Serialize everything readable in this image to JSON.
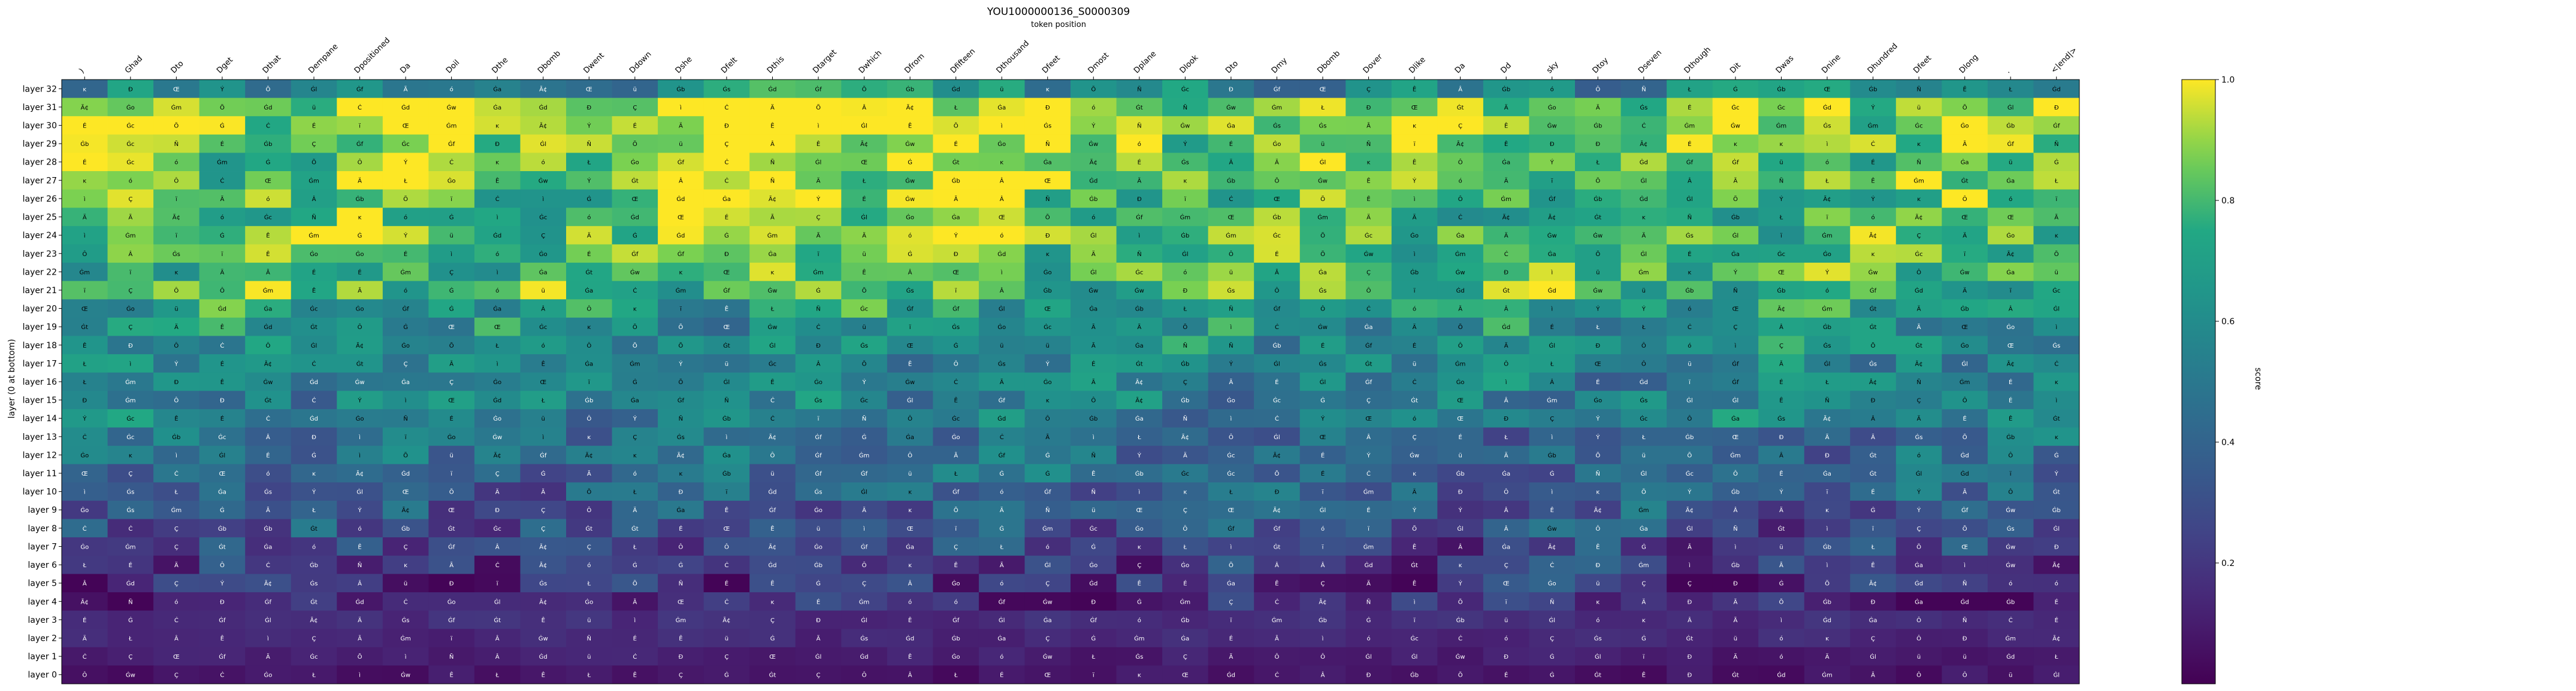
{
  "chart_data": {
    "type": "heatmap",
    "title": "YOU1000000136_S0000309",
    "subtitle": "token position",
    "ylabel": "layer (0 at bottom)",
    "colorbar_label": "score",
    "colorbar_ticks": [
      "0.2",
      "0.4",
      "0.6",
      "0.8",
      "1.0"
    ],
    "colorbar_tick_values": [
      0.2,
      0.4,
      0.6,
      0.8,
      1.0
    ],
    "vmin": 0.0,
    "vmax": 1.0,
    "colormap": "viridis",
    "x_tokens": [
      ")",
      "Ghad",
      "Dto",
      "Dget",
      "Dthat",
      "Dempane",
      "Dpositioned",
      "Da",
      "Doil",
      "Dthe",
      "Dbomb",
      "Dwent",
      "Ddown",
      "Dshe",
      "Dfelt",
      "Dthis",
      "Dtarget",
      "Dwhich",
      "Dfrom",
      "Dfifteen",
      "Dthousand",
      "Dfeet",
      "Dmost",
      "Dplane",
      "Dlook",
      "Dto",
      "Dmy",
      "Dbomb",
      "Dover",
      "Dlike",
      "Da",
      "Dd",
      "sky",
      "Dtoy",
      "Dseven",
      "Dthough",
      "Dit",
      "Dwas",
      "Dnine",
      "Dhundred",
      "Dfeet",
      "Dlong",
      ".",
      "<|end|>"
    ],
    "y_layers": [
      "layer 32",
      "layer 31",
      "layer 30",
      "layer 29",
      "layer 28",
      "layer 27",
      "layer 26",
      "layer 25",
      "layer 24",
      "layer 23",
      "layer 22",
      "layer 21",
      "layer 20",
      "layer 19",
      "layer 18",
      "layer 17",
      "layer 16",
      "layer 15",
      "layer 14",
      "layer 13",
      "layer 12",
      "layer 11",
      "layer 10",
      "layer 9",
      "layer 8",
      "layer 7",
      "layer 6",
      "layer 5",
      "layer 4",
      "layer 3",
      "layer 2",
      "layer 1",
      "layer 0"
    ],
    "layer_profile": [
      0.58,
      0.92,
      0.93,
      0.86,
      0.85,
      0.84,
      0.82,
      0.8,
      0.82,
      0.8,
      0.78,
      0.8,
      0.66,
      0.62,
      0.6,
      0.58,
      0.56,
      0.55,
      0.54,
      0.46,
      0.45,
      0.42,
      0.4,
      0.34,
      0.3,
      0.26,
      0.22,
      0.18,
      0.14,
      0.12,
      0.1,
      0.06,
      0.03
    ],
    "cell_label_sets": [
      "Ã",
      "Â",
      "Ã¢",
      "Ä",
      "Ê",
      "É",
      "Ġ",
      "Ċ",
      "Ł",
      "ĸ",
      "Ô",
      "Õ",
      "Ç",
      "Ð",
      "Ñ",
      "Ý",
      "ì",
      "ï",
      "ó",
      "Œ",
      "ü",
      "Ġt",
      "Ġa",
      "Ġo",
      "Ġs",
      "Ġw",
      "Ġm",
      "Ġf",
      "Ġd",
      "Ġc",
      "Ġb",
      "Ġl"
    ]
  }
}
